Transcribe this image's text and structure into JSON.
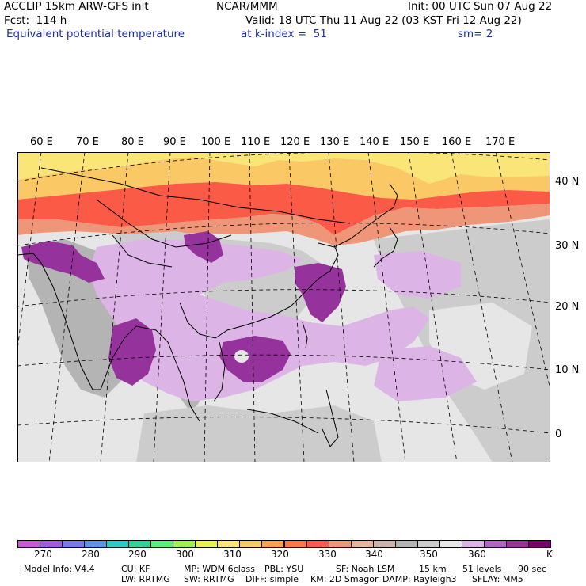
{
  "header": {
    "model_line": "ACCLIP 15km ARW-GFS init",
    "org": "NCAR/MMM",
    "init": "Init: 00 UTC Sun 07 Aug 22",
    "forecast": "Fcst:  114 h",
    "valid": "Valid: 18 UTC Thu 11 Aug 22 (03 KST Fri 12 Aug 22)",
    "field": "Equivalent potential temperature",
    "level": "at k-index =  51",
    "smoothing": "sm= 2"
  },
  "map": {
    "lon_labels": [
      "60 E",
      "70 E",
      "80 E",
      "90 E",
      "100 E",
      "110 E",
      "120 E",
      "130 E",
      "140 E",
      "150 E",
      "160 E",
      "170 E"
    ],
    "lat_labels": [
      "40 N",
      "30 N",
      "20 N",
      "10 N",
      "0"
    ]
  },
  "colorbar": {
    "colors": [
      "#c85ad2",
      "#a05adc",
      "#7878e6",
      "#5a96e6",
      "#2ec8c8",
      "#32d296",
      "#5af078",
      "#a0f050",
      "#e6f050",
      "#fae678",
      "#fac864",
      "#faa050",
      "#fa7846",
      "#fa5a46",
      "#f09678",
      "#e6b4a0",
      "#c8b4aa",
      "#b4b4b4",
      "#cccccc",
      "#e6e6e6",
      "#dcb4e6",
      "#b464c8",
      "#96329b",
      "#78006e"
    ],
    "labels": [
      "270",
      "280",
      "290",
      "300",
      "310",
      "320",
      "330",
      "340",
      "350",
      "360"
    ],
    "unit": "K"
  },
  "footer": {
    "line1": [
      "Model Info: V4.4",
      "CU: KF",
      "MP: WDM 6class",
      "PBL: YSU",
      "SF: Noah LSM",
      "15 km",
      "51 levels",
      "90 sec"
    ],
    "line2": [
      "LW: RRTMG",
      "SW: RRTMG",
      "DIFF: simple",
      "KM: 2D Smagor",
      "DAMP: Rayleigh3",
      "SFLAY: MM5"
    ]
  }
}
